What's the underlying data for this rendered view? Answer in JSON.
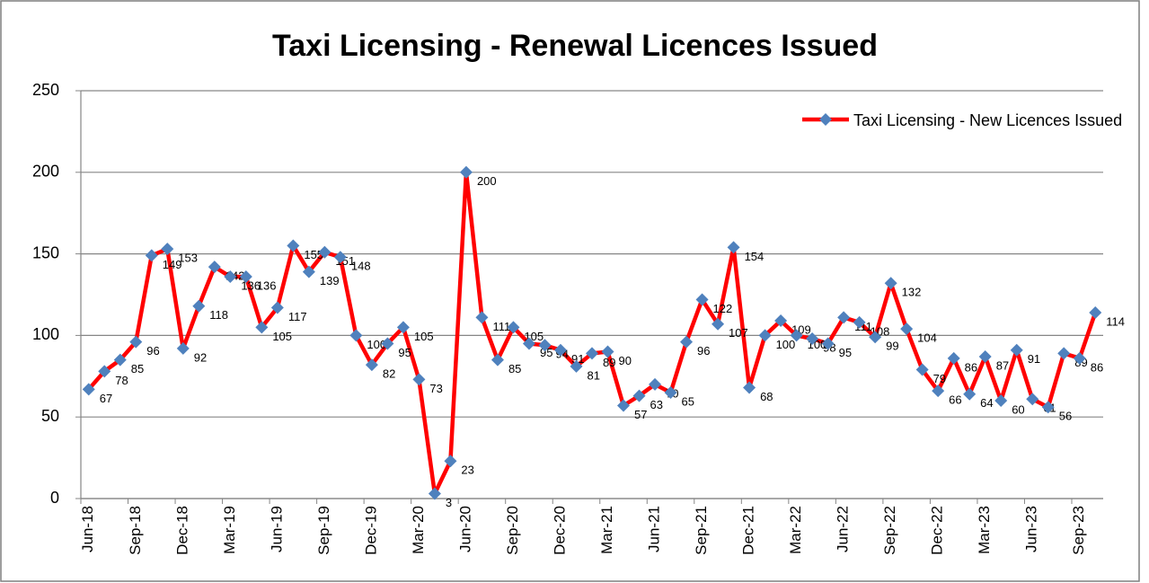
{
  "chart_data": {
    "type": "line",
    "title": "Taxi Licensing - Renewal Licences Issued",
    "categories": [
      "Jun-18",
      null,
      null,
      "Sep-18",
      null,
      null,
      "Dec-18",
      null,
      null,
      "Mar-19",
      null,
      null,
      "Jun-19",
      null,
      null,
      "Sep-19",
      null,
      null,
      "Dec-19",
      null,
      null,
      "Mar-20",
      null,
      null,
      "Jun-20",
      null,
      null,
      "Sep-20",
      null,
      null,
      "Dec-20",
      null,
      null,
      "Mar-21",
      null,
      null,
      "Jun-21",
      null,
      null,
      "Sep-21",
      null,
      null,
      "Dec-21",
      null,
      null,
      "Mar-22",
      null,
      null,
      "Jun-22",
      null,
      null,
      "Sep-22",
      null,
      null,
      "Dec-22",
      null,
      null,
      "Mar-23",
      null,
      null,
      "Jun-23",
      null,
      null,
      "Sep-23",
      null
    ],
    "series": [
      {
        "name": "Taxi Licensing - New Licences Issued",
        "color": "#ff0000",
        "marker_color": "#4f81bd",
        "values": [
          67,
          78,
          85,
          96,
          149,
          153,
          92,
          118,
          142,
          136,
          136,
          105,
          117,
          155,
          139,
          151,
          148,
          100,
          82,
          95,
          105,
          73,
          3,
          23,
          200,
          111,
          85,
          105,
          95,
          94,
          91,
          81,
          89,
          90,
          57,
          63,
          70,
          65,
          96,
          122,
          107,
          154,
          68,
          100,
          109,
          100,
          98,
          95,
          111,
          108,
          99,
          132,
          104,
          79,
          66,
          86,
          64,
          87,
          60,
          91,
          61,
          56,
          89,
          86,
          114
        ]
      }
    ],
    "ylim": [
      0,
      250
    ],
    "yticks": [
      0,
      50,
      100,
      150,
      200,
      250
    ],
    "grid": true,
    "legend": "top-right"
  }
}
